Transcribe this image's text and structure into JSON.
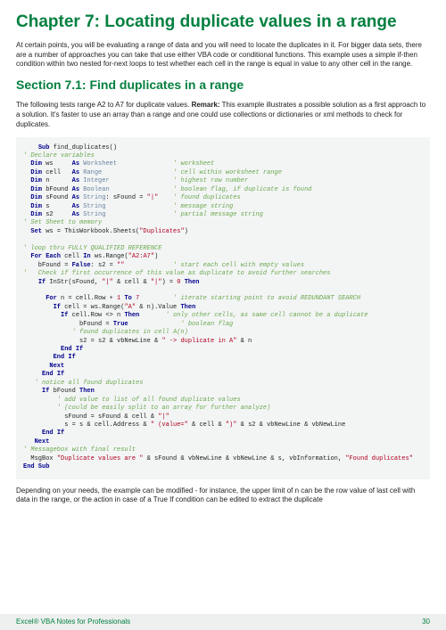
{
  "chapter": {
    "title": "Chapter 7: Locating duplicate values in a range",
    "intro": "At certain points, you will be evaluating a range of data and you will need to locate the duplicates in it. For bigger data sets, there are a number of approaches you can take that use either VBA code or conditional functions. This example uses a simple if-then condition within two nested for-next loops to test whether each cell in the range is equal in value to any other cell in the range."
  },
  "section": {
    "title": "Section 7.1: Find duplicates in a range",
    "intro_pre": "The following tests range A2 to A7 for duplicate values. ",
    "intro_bold": "Remark:",
    "intro_post": " This example illustrates a possible solution as a first approach to a solution. It's faster to use an array than a range and one could use collections or dictionaries or xml methods to check for duplicates."
  },
  "closing": "Depending on your needs, the example can be modified - for instance, the upper limit of n can be the row value of last cell with data in the range, or the action in case of a True If condition can be edited to extract the duplicate",
  "footer": {
    "left": "Excel® VBA Notes for Professionals",
    "page": "30"
  },
  "colors": {
    "accent": "#048040",
    "code_bg": "#f3f5f5",
    "keyword": "#00008b",
    "type": "#6782a0",
    "comment": "#6ba84f",
    "string": "#b00020",
    "footer_bg": "#eef0f0"
  }
}
